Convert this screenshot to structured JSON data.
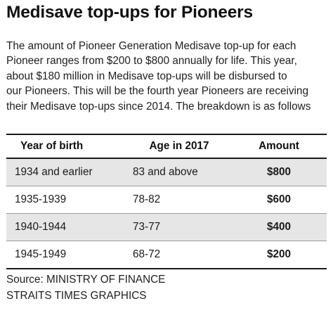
{
  "title": "Medisave top-ups for Pioneers",
  "intro_lines": [
    "The amount of Pioneer Generation Medisave top-up for each",
    "Pioneer ranges from $200 to $800 annually for life. This year,",
    "about $180 million in Medisave top-ups will be disbursed to",
    "our Pioneers. This will be the fourth year Pioneers are receiving",
    "their Medisave top-ups since 2014. The breakdown is as follows"
  ],
  "table": {
    "headers": [
      "Year of birth",
      "Age in 2017",
      "Amount"
    ],
    "rows": [
      [
        "1934 and earlier",
        "83 and above",
        "$800"
      ],
      [
        "1935-1939",
        "78-82",
        "$600"
      ],
      [
        "1940-1944",
        "73-77",
        "$400"
      ],
      [
        "1945-1949",
        "68-72",
        "$200"
      ]
    ]
  },
  "source": {
    "line1": "Source: MINISTRY OF FINANCE",
    "line2": "STRAITS TIMES GRAPHICS"
  },
  "colors": {
    "shaded_row": "#e6e6e6",
    "text": "#1a1a1a"
  }
}
